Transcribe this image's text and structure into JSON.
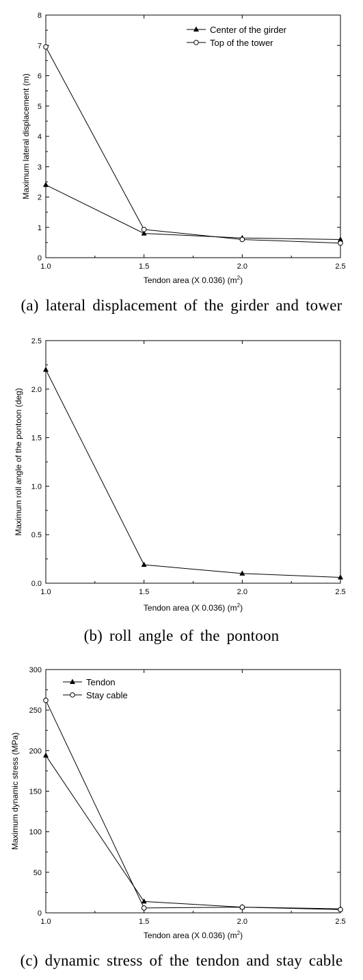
{
  "chart_data": [
    {
      "type": "line",
      "caption": "(a) lateral displacement of the girder and tower",
      "xlabel": "Tendon area (X 0.036) (m",
      "xlabel_sup": "2",
      "xlabel_end": ")",
      "ylabel": "Maximum lateral displacement (m)",
      "xlim": [
        1.0,
        2.5
      ],
      "ylim": [
        0,
        8
      ],
      "x_ticks": [
        "1.0",
        "1.5",
        "2.0",
        "2.5"
      ],
      "y_ticks": [
        "0",
        "1",
        "2",
        "3",
        "4",
        "5",
        "6",
        "7",
        "8"
      ],
      "legend_position": "top-right",
      "grid": false,
      "x": [
        1.0,
        1.5,
        2.0,
        2.5
      ],
      "series": [
        {
          "name": "Center of the girder",
          "marker": "filled-triangle",
          "values": [
            2.4,
            0.8,
            0.65,
            0.6
          ]
        },
        {
          "name": "Top of the tower",
          "marker": "open-circle",
          "values": [
            6.95,
            0.93,
            0.6,
            0.48
          ]
        }
      ]
    },
    {
      "type": "line",
      "caption": "(b) roll angle of the pontoon",
      "xlabel": "Tendon area (X 0.036) (m",
      "xlabel_sup": "2",
      "xlabel_end": ")",
      "ylabel": "Maximum roll angle of the pontoon (deg)",
      "xlim": [
        1.0,
        2.5
      ],
      "ylim": [
        0,
        2.5
      ],
      "x_ticks": [
        "1.0",
        "1.5",
        "2.0",
        "2.5"
      ],
      "y_ticks": [
        "0.0",
        "0.5",
        "1.0",
        "1.5",
        "2.0",
        "2.5"
      ],
      "legend_position": "none",
      "grid": false,
      "x": [
        1.0,
        1.5,
        2.0,
        2.5
      ],
      "series": [
        {
          "name": "",
          "marker": "filled-triangle",
          "values": [
            2.2,
            0.19,
            0.1,
            0.06
          ]
        }
      ]
    },
    {
      "type": "line",
      "caption": "(c) dynamic stress of the tendon and stay cable",
      "xlabel": "Tendon area (X 0.036) (m",
      "xlabel_sup": "2",
      "xlabel_end": ")",
      "ylabel": "Maximum dynamic stress (MPa)",
      "xlim": [
        1.0,
        2.5
      ],
      "ylim": [
        0,
        300
      ],
      "x_ticks": [
        "1.0",
        "1.5",
        "2.0",
        "2.5"
      ],
      "y_ticks": [
        "0",
        "50",
        "100",
        "150",
        "200",
        "250",
        "300"
      ],
      "legend_position": "top-left",
      "grid": false,
      "x": [
        1.0,
        1.5,
        2.0,
        2.5
      ],
      "series": [
        {
          "name": "Tendon",
          "marker": "filled-triangle",
          "values": [
            194,
            14,
            7,
            5
          ]
        },
        {
          "name": "Stay cable",
          "marker": "open-circle",
          "values": [
            262,
            6,
            7,
            4
          ]
        }
      ]
    }
  ]
}
